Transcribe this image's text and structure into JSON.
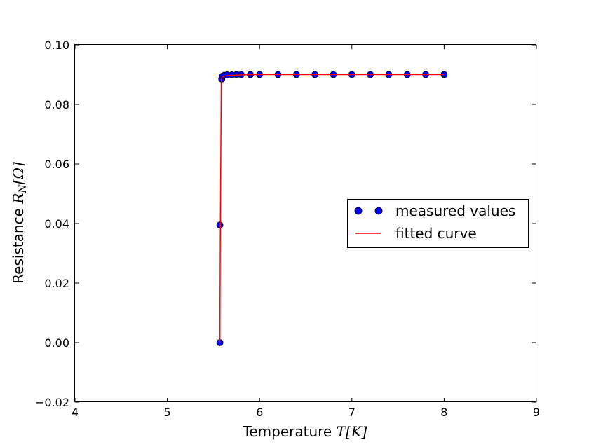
{
  "chart_data": {
    "type": "scatter",
    "xlabel": "Temperature T[K]",
    "ylabel": "Resistance R_N[Ω]",
    "xlim": [
      4,
      9
    ],
    "ylim": [
      -0.02,
      0.1
    ],
    "x_ticks": [
      "4",
      "5",
      "6",
      "7",
      "8",
      "9"
    ],
    "y_ticks": [
      "−0.02",
      "0.00",
      "0.02",
      "0.04",
      "0.06",
      "0.08",
      "0.10"
    ],
    "grid": false,
    "legend_position": "center-right",
    "series": [
      {
        "name": "measured values",
        "kind": "markers",
        "color": "#0000ff",
        "points": [
          [
            5.57,
            0.0
          ],
          [
            5.57,
            0.0395
          ],
          [
            5.59,
            0.0885
          ],
          [
            5.6,
            0.0895
          ],
          [
            5.62,
            0.0898
          ],
          [
            5.65,
            0.0899
          ],
          [
            5.7,
            0.0899
          ],
          [
            5.75,
            0.09
          ],
          [
            5.8,
            0.09
          ],
          [
            5.9,
            0.09
          ],
          [
            6.0,
            0.09
          ],
          [
            6.2,
            0.09
          ],
          [
            6.4,
            0.09
          ],
          [
            6.6,
            0.09
          ],
          [
            6.8,
            0.09
          ],
          [
            7.0,
            0.09
          ],
          [
            7.2,
            0.09
          ],
          [
            7.4,
            0.09
          ],
          [
            7.6,
            0.09
          ],
          [
            7.8,
            0.09
          ],
          [
            8.0,
            0.09
          ]
        ]
      },
      {
        "name": "fitted curve",
        "kind": "line",
        "color": "#ff0000",
        "points": [
          [
            5.57,
            0.0
          ],
          [
            5.575,
            0.0395
          ],
          [
            5.585,
            0.0885
          ],
          [
            5.6,
            0.0893
          ],
          [
            5.65,
            0.0897
          ],
          [
            5.8,
            0.0899
          ],
          [
            6.0,
            0.09
          ],
          [
            7.0,
            0.09
          ],
          [
            8.0,
            0.09
          ]
        ]
      }
    ]
  }
}
